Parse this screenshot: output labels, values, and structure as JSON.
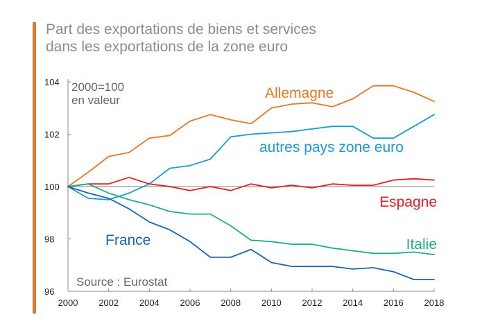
{
  "title": {
    "line1": "Part des exportations de biens et services",
    "line2": "dans les exportations de la zone euro"
  },
  "colors": {
    "accent": "#e87722",
    "axis": "#888888",
    "baseline": "#999999"
  },
  "chart_data": {
    "type": "line",
    "title": "Part des exportations de biens et services dans les exportations de la zone euro",
    "x": [
      2000,
      2001,
      2002,
      2003,
      2004,
      2005,
      2006,
      2007,
      2008,
      2009,
      2010,
      2011,
      2012,
      2013,
      2014,
      2015,
      2016,
      2017,
      2018
    ],
    "xticks": [
      "2000",
      "2002",
      "2004",
      "2006",
      "2008",
      "2010",
      "2012",
      "2014",
      "2016",
      "2018"
    ],
    "yticks": [
      "96",
      "98",
      "100",
      "102",
      "104"
    ],
    "xlim": [
      2000,
      2018
    ],
    "ylim": [
      96,
      104
    ],
    "grid": false,
    "baseline": 100,
    "unit_note": [
      "2000=100",
      "en valeur"
    ],
    "source": "Source : Eurostat",
    "series": [
      {
        "name": "Allemagne",
        "color": "#e87722",
        "values": [
          100,
          100.55,
          101.15,
          101.3,
          101.85,
          101.95,
          102.5,
          102.75,
          102.55,
          102.4,
          103.0,
          103.15,
          103.2,
          103.05,
          103.35,
          103.85,
          103.85,
          103.6,
          103.25
        ]
      },
      {
        "name": "autres pays zone euro",
        "color": "#1a9bd7",
        "values": [
          100,
          99.55,
          99.5,
          99.75,
          100.1,
          100.7,
          100.8,
          101.05,
          101.9,
          102.0,
          102.05,
          102.1,
          102.2,
          102.3,
          102.3,
          101.85,
          101.85,
          102.3,
          102.75
        ]
      },
      {
        "name": "Espagne",
        "color": "#e31e24",
        "values": [
          100,
          100.1,
          100.1,
          100.35,
          100.1,
          100.0,
          99.85,
          100.0,
          99.85,
          100.1,
          99.95,
          100.05,
          99.95,
          100.1,
          100.05,
          100.05,
          100.25,
          100.3,
          100.25
        ]
      },
      {
        "name": "Italie",
        "color": "#1fac8c",
        "values": [
          100,
          100.1,
          99.75,
          99.5,
          99.3,
          99.05,
          98.95,
          98.95,
          98.5,
          97.95,
          97.9,
          97.8,
          97.8,
          97.65,
          97.55,
          97.45,
          97.45,
          97.5,
          97.4
        ]
      },
      {
        "name": "France",
        "color": "#1b63b1",
        "values": [
          100,
          99.75,
          99.55,
          99.15,
          98.65,
          98.35,
          97.9,
          97.3,
          97.3,
          97.6,
          97.1,
          96.95,
          96.95,
          96.95,
          96.85,
          96.9,
          96.75,
          96.45,
          96.45
        ]
      }
    ]
  }
}
